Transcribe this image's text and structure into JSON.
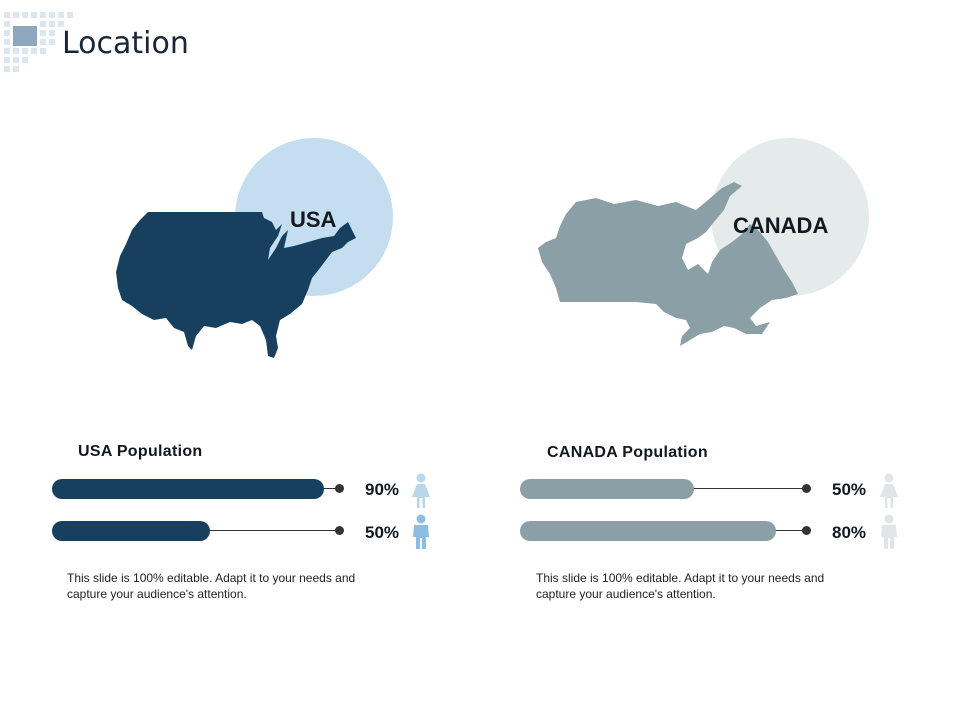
{
  "slide": {
    "title": "Location"
  },
  "usa": {
    "name": "USA",
    "population_title": "USA Population",
    "bars": [
      {
        "percent_label": "90%",
        "value": 0.9,
        "icon": "female-person-icon"
      },
      {
        "percent_label": "50%",
        "value": 0.5,
        "icon": "male-person-icon"
      }
    ],
    "description": "This slide is 100% editable. Adapt it to your needs and capture your audience's attention."
  },
  "canada": {
    "name": "CANADA",
    "population_title": "CANADA Population",
    "bars": [
      {
        "percent_label": "50%",
        "value": 0.5,
        "icon": "female-person-icon"
      },
      {
        "percent_label": "80%",
        "value": 0.8,
        "icon": "male-person-icon"
      }
    ],
    "description": "This slide is 100% editable. Adapt it to your needs and capture your audience's attention."
  },
  "colors": {
    "usa_dark": "#17405e",
    "usa_light": "#c4def0",
    "canada_gray": "#8ba0a6",
    "canada_light": "#e5eaeb",
    "female_icon_light": "#b9d6ea",
    "male_icon_usa": "#8dbde0",
    "canada_icon": "#e0e6e8"
  }
}
